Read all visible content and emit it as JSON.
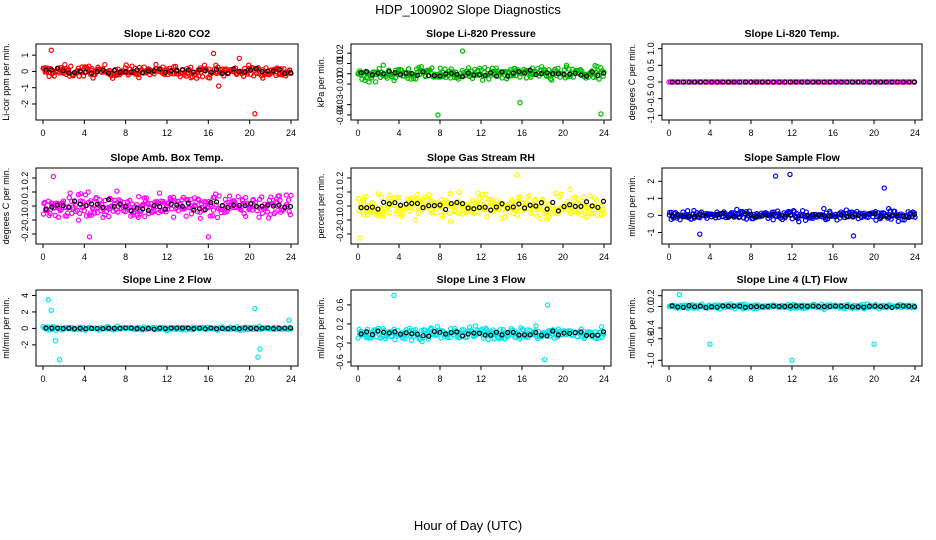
{
  "figure": {
    "title": "HDP_100902  Slope Diagnostics",
    "xlabel": "Hour of Day (UTC)",
    "xticks": [
      "0",
      "4",
      "8",
      "12",
      "16",
      "20",
      "24"
    ]
  },
  "chart_data": [
    {
      "type": "scatter",
      "title": "Slope Li-820 CO2",
      "ylabel": "Li-cor ppm per min.",
      "ylim": [
        -2.8,
        1.5
      ],
      "yticks": [
        -2,
        -1,
        0,
        1
      ],
      "ytick_labels": [
        "-2",
        "-1",
        "0",
        "1"
      ],
      "xlim": [
        0,
        24
      ],
      "color": "#ff0000",
      "spread": 0.45,
      "n": 260,
      "outliers": [
        [
          0.8,
          1.3
        ],
        [
          16.5,
          1.1
        ],
        [
          20.5,
          -2.6
        ],
        [
          17,
          -0.9
        ],
        [
          19,
          0.8
        ]
      ],
      "series": [
        {
          "name": "slope",
          "color": "#ff0000"
        },
        {
          "name": "hourly",
          "color": "#000000"
        }
      ]
    },
    {
      "type": "scatter",
      "title": "Slope Li-820 Pressure",
      "ylabel": "kPa per min.",
      "ylim": [
        -0.042,
        0.026
      ],
      "yticks": [
        -0.04,
        -0.03,
        -0.01,
        0,
        0.01,
        0.02
      ],
      "ytick_labels": [
        "-0.04",
        "-0.03",
        "-0.01",
        "0",
        "0.01",
        "0.02"
      ],
      "xlim": [
        0,
        24
      ],
      "color": "#00bb00",
      "spread": 0.008,
      "n": 260,
      "outliers": [
        [
          10.2,
          0.022
        ],
        [
          15.8,
          -0.028
        ],
        [
          7.8,
          -0.04
        ],
        [
          23.7,
          -0.039
        ]
      ],
      "series": [
        {
          "name": "slope",
          "color": "#00bb00"
        },
        {
          "name": "hourly",
          "color": "#000000"
        }
      ]
    },
    {
      "type": "scatter",
      "title": "Slope Li-820 Temp.",
      "ylabel": "degrees C per min.",
      "ylim": [
        -1.05,
        1.05
      ],
      "yticks": [
        -1,
        -0.5,
        0,
        0.5,
        1
      ],
      "ytick_labels": [
        "-1.0",
        "-0.5",
        "0.0",
        "0.5",
        "1.0"
      ],
      "xlim": [
        0,
        24
      ],
      "color": "#ff00ff",
      "spread": 0.0,
      "n": 120,
      "outliers": [],
      "series": [
        {
          "name": "slope",
          "color": "#ff00ff"
        },
        {
          "name": "hourly",
          "color": "#000000"
        }
      ]
    },
    {
      "type": "scatter",
      "title": "Slope Amb. Box Temp.",
      "ylabel": "degrees C per min.",
      "ylim": [
        -0.25,
        0.25
      ],
      "yticks": [
        -0.2,
        -0.1,
        0,
        0.1,
        0.2
      ],
      "ytick_labels": [
        "-0.2",
        "-0.1",
        "0.0",
        "0.1",
        "0.2"
      ],
      "xlim": [
        0,
        24
      ],
      "color": "#ff00ff",
      "spread": 0.1,
      "n": 300,
      "outliers": [
        [
          4.5,
          -0.22
        ],
        [
          16,
          -0.22
        ],
        [
          1,
          0.21
        ]
      ],
      "series": [
        {
          "name": "slope",
          "color": "#ff00ff"
        },
        {
          "name": "hourly",
          "color": "#000000"
        }
      ]
    },
    {
      "type": "scatter",
      "title": "Slope Gas Stream RH",
      "ylabel": "percent per min.",
      "ylim": [
        -0.25,
        0.25
      ],
      "yticks": [
        -0.2,
        -0.1,
        0,
        0.1,
        0.2
      ],
      "ytick_labels": [
        "-0.2",
        "-0.1",
        "0.0",
        "0.1",
        "0.2"
      ],
      "xlim": [
        0,
        24
      ],
      "color": "#ffff00",
      "spread": 0.1,
      "n": 300,
      "outliers": [
        [
          15.5,
          0.22
        ],
        [
          0.2,
          -0.23
        ]
      ],
      "series": [
        {
          "name": "slope",
          "color": "#ffff00"
        },
        {
          "name": "hourly",
          "color": "#000000"
        }
      ]
    },
    {
      "type": "scatter",
      "title": "Slope Sample Flow",
      "ylabel": "ml/min per min.",
      "ylim": [
        -1.5,
        2.6
      ],
      "yticks": [
        -1,
        0,
        1,
        2
      ],
      "ytick_labels": [
        "-1",
        "0",
        "1",
        "2"
      ],
      "xlim": [
        0,
        24
      ],
      "color": "#0000ff",
      "spread": 0.35,
      "n": 260,
      "outliers": [
        [
          10.4,
          2.3
        ],
        [
          11.8,
          2.4
        ],
        [
          21,
          1.6
        ],
        [
          3,
          -1.1
        ],
        [
          18,
          -1.2
        ]
      ],
      "series": [
        {
          "name": "slope",
          "color": "#0000ff"
        },
        {
          "name": "hourly",
          "color": "#000000"
        }
      ]
    },
    {
      "type": "scatter",
      "title": "Slope Line 2 Flow",
      "ylabel": "ml/min per min.",
      "ylim": [
        -4.2,
        4.3
      ],
      "yticks": [
        -2,
        0,
        2,
        4
      ],
      "ytick_labels": [
        "-2",
        "0",
        "2",
        "4"
      ],
      "xlim": [
        0,
        24
      ],
      "color": "#00e5ee",
      "spread": 0.25,
      "n": 220,
      "outliers": [
        [
          0.5,
          3.5
        ],
        [
          0.8,
          2.2
        ],
        [
          1.2,
          -1.5
        ],
        [
          1.6,
          -3.8
        ],
        [
          20.5,
          2.4
        ],
        [
          21,
          -2.5
        ],
        [
          20.8,
          -3.5
        ],
        [
          23.8,
          1
        ]
      ],
      "series": [
        {
          "name": "slope",
          "color": "#00e5ee"
        },
        {
          "name": "hourly",
          "color": "#000000"
        }
      ]
    },
    {
      "type": "scatter",
      "title": "Slope Line 3 Flow",
      "ylabel": "ml/min per min.",
      "ylim": [
        -0.62,
        0.85
      ],
      "yticks": [
        -0.6,
        -0.2,
        0.2,
        0.6
      ],
      "ytick_labels": [
        "-0.6",
        "-0.2",
        "0.2",
        "0.6"
      ],
      "xlim": [
        0,
        24
      ],
      "color": "#00e5ee",
      "spread": 0.16,
      "n": 280,
      "outliers": [
        [
          3.5,
          0.8
        ],
        [
          18.5,
          0.6
        ],
        [
          18.2,
          -0.55
        ]
      ],
      "series": [
        {
          "name": "slope",
          "color": "#00e5ee"
        },
        {
          "name": "hourly",
          "color": "#000000"
        }
      ]
    },
    {
      "type": "scatter",
      "title": "Slope Line 4 (LT) Flow",
      "ylabel": "ml/min per min.",
      "ylim": [
        -1.05,
        0.25
      ],
      "yticks": [
        -1,
        -0.6,
        -0.4,
        0,
        0.2
      ],
      "ytick_labels": [
        "-1.0",
        "-0.6",
        "-0.4",
        "0.0",
        "0.2"
      ],
      "xlim": [
        0,
        24
      ],
      "color": "#00e5ee",
      "spread": 0.05,
      "n": 280,
      "outliers": [
        [
          4,
          -0.7
        ],
        [
          12,
          -1.0
        ],
        [
          20,
          -0.7
        ],
        [
          1,
          0.22
        ]
      ],
      "series": [
        {
          "name": "slope",
          "color": "#00e5ee"
        },
        {
          "name": "hourly",
          "color": "#000000"
        }
      ]
    }
  ]
}
